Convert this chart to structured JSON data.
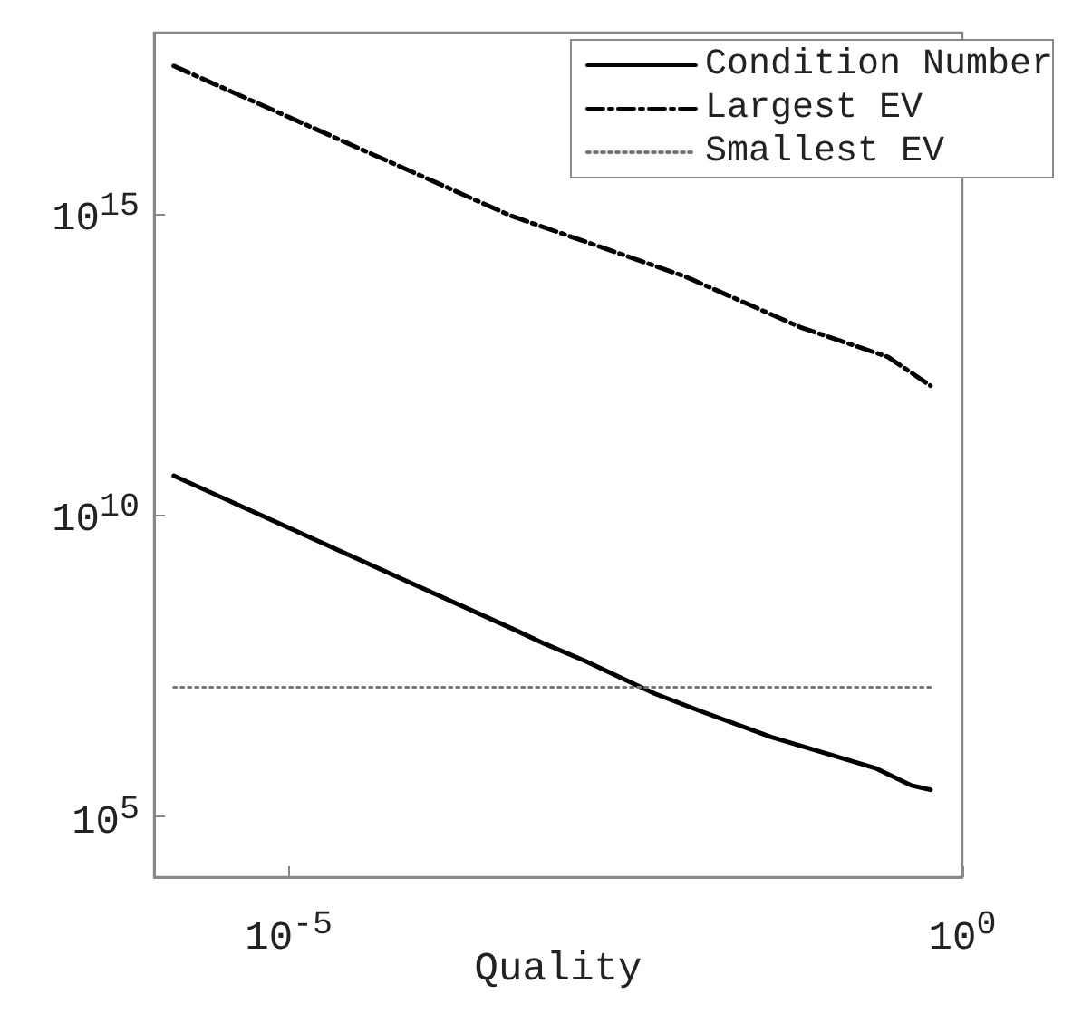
{
  "chart_data": {
    "type": "line",
    "xlabel": "Quality",
    "log": "xy",
    "grid": false,
    "legend": "top right",
    "marker": "none",
    "xlim": [
      1e-06,
      1
    ],
    "xticks": [
      {
        "value": 1e-05,
        "label": "10$^{-5}$"
      },
      {
        "value": 1,
        "label": "10$^{0}$"
      }
    ],
    "ylim": [
      10000.0,
      1e+18
    ],
    "yticks": [
      {
        "value": 100000.0,
        "label": "10$^{5}$"
      },
      {
        "value": 10000000000.0,
        "label": "10$^{10}$"
      },
      {
        "value": 1000000000000000.0,
        "label": "10$^{15}$"
      }
    ],
    "series": [
      {
        "name": "Condition Number",
        "color": "#000000",
        "line_style": "solid",
        "x": [
          1.4e-06,
          0.00046,
          0.00079,
          0.0016,
          0.0052,
          0.011,
          0.038,
          0.23,
          0.42,
          0.58
        ],
        "values": [
          45000000000.0,
          130000000.0,
          74000000.0,
          38000000.0,
          11000000.0,
          5800000.0,
          2100000.0,
          630000.0,
          330000.0,
          280000.0
        ]
      },
      {
        "name": "Largest EV",
        "color": "#000000",
        "line_style": "dashdot",
        "x": [
          1.4e-06,
          0.00044,
          0.0087,
          0.063,
          0.28,
          0.58
        ],
        "values": [
          2.8e+17,
          930000000000000.0,
          91000000000000.0,
          13000000000000.0,
          4200000000000.0,
          1400000000000.0
        ]
      },
      {
        "name": "Smallest EV",
        "color": "#777777",
        "line_style": "dotted",
        "x": [
          1.4e-06,
          0.58
        ],
        "values": [
          14000000.0,
          14000000.0
        ]
      }
    ]
  }
}
